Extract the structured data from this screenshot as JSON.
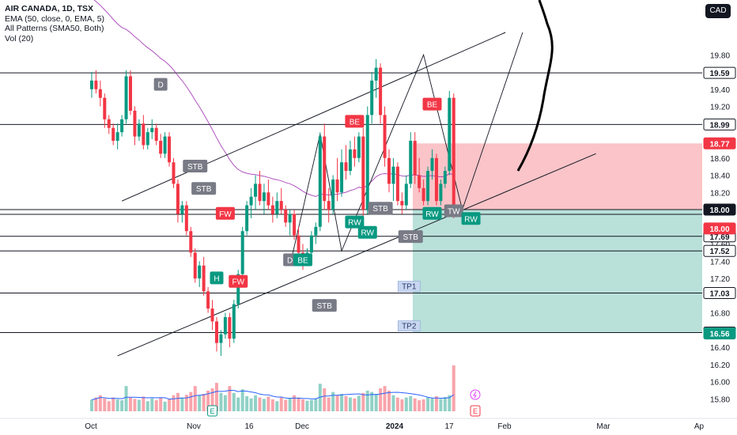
{
  "header": {
    "title": "AIR CANADA, 1D, TSX",
    "indicators": [
      "EMA (50, close, 0, EMA, 5)",
      "All Patterns (SMA50, Both)",
      "Vol (20)"
    ],
    "currency": "CAD"
  },
  "colors": {
    "up": "#089981",
    "down": "#f23645",
    "ema": "#9c27b0",
    "volume_ma": "#2962ff",
    "stop_zone": "#f7a4ab",
    "target_zone": "#9bd3c9",
    "badge_grey": "#787b86",
    "badge_green": "#089981",
    "badge_red": "#f23645"
  },
  "chart_data": {
    "type": "candlestick",
    "symbol": "AIR CANADA",
    "interval": "1D",
    "exchange": "TSX",
    "ylim": [
      15.72,
      20.06
    ],
    "x_ticks": [
      "Oct",
      "Nov",
      "16",
      "Dec",
      "2024",
      "17",
      "Feb",
      "Mar",
      "Ap"
    ],
    "y_ticks": [
      "19.80",
      "19.40",
      "19.20",
      "18.60",
      "18.40",
      "18.20",
      "17.80",
      "17.60",
      "17.40",
      "17.20",
      "16.80",
      "16.60",
      "16.40",
      "16.20",
      "16.00",
      "15.80"
    ],
    "horizontal_levels": [
      {
        "value": 19.59,
        "label": "19.59"
      },
      {
        "value": 18.99,
        "label": "18.99"
      },
      {
        "value": 18.0,
        "label": "18.00"
      },
      {
        "value": 17.69,
        "label": "17.69"
      },
      {
        "value": 17.52,
        "label": "17.52"
      },
      {
        "value": 17.03,
        "label": "17.03"
      },
      {
        "value": 16.57,
        "label": "16.57"
      }
    ],
    "price_tags": [
      {
        "value": 18.77,
        "label": "18.77",
        "type": "down"
      },
      {
        "value": 18.06,
        "label": "18.06",
        "type": "plain"
      },
      {
        "value": 18.03,
        "label": "18.03",
        "type": "plain-light"
      },
      {
        "value": 18.0,
        "label": "18.00",
        "type": "black"
      },
      {
        "value": 17.9,
        "label": "18.00",
        "type": "down"
      },
      {
        "value": 16.56,
        "label": "16.56",
        "type": "up"
      }
    ],
    "position_tool": {
      "entry": 18.0,
      "stop": 18.77,
      "target": 16.57,
      "targets": [
        {
          "label": "TP1",
          "value": 17.03
        },
        {
          "label": "TP2",
          "value": 16.57
        }
      ]
    },
    "pattern_labels": [
      {
        "text": "D",
        "day": -53,
        "price": 19.53,
        "type": "grey"
      },
      {
        "text": "STB",
        "day": -45,
        "price": 18.58,
        "type": "grey"
      },
      {
        "text": "STB",
        "day": -43,
        "price": 18.32,
        "type": "grey"
      },
      {
        "text": "FW",
        "day": -38,
        "price": 18.03,
        "type": "red"
      },
      {
        "text": "H",
        "day": -40,
        "price": 17.28,
        "type": "green"
      },
      {
        "text": "FW",
        "day": -35,
        "price": 17.24,
        "type": "red"
      },
      {
        "text": "STB",
        "day": -15,
        "price": 16.96,
        "type": "grey"
      },
      {
        "text": "D",
        "day": -23,
        "price": 17.49,
        "type": "grey"
      },
      {
        "text": "BE",
        "day": -20,
        "price": 17.49,
        "type": "green"
      },
      {
        "text": "BE",
        "day": -8,
        "price": 19.1,
        "type": "red"
      },
      {
        "text": "RW",
        "day": -8,
        "price": 17.93,
        "type": "green"
      },
      {
        "text": "RW",
        "day": -5,
        "price": 17.81,
        "type": "green"
      },
      {
        "text": "STB",
        "day": -2,
        "price": 18.09,
        "type": "grey"
      },
      {
        "text": "STB",
        "day": 5,
        "price": 17.76,
        "type": "grey"
      },
      {
        "text": "BE",
        "day": 10,
        "price": 19.3,
        "type": "red"
      },
      {
        "text": "RW",
        "day": 10,
        "price": 18.03,
        "type": "green"
      },
      {
        "text": "TW",
        "day": 15,
        "price": 18.06,
        "type": "grey"
      },
      {
        "text": "RW",
        "day": 19,
        "price": 17.97,
        "type": "green"
      }
    ],
    "annotations": [
      "TP1",
      "TP2"
    ],
    "events": [
      {
        "label": "E",
        "day": -41
      },
      {
        "label": "E",
        "day": 20
      }
    ],
    "candles": [
      [
        19.4,
        19.6,
        19.3,
        19.5
      ],
      [
        19.5,
        19.62,
        19.35,
        19.4
      ],
      [
        19.4,
        19.5,
        19.2,
        19.3
      ],
      [
        19.3,
        19.35,
        18.95,
        19.05
      ],
      [
        19.05,
        19.1,
        18.88,
        18.95
      ],
      [
        18.95,
        19.0,
        18.75,
        18.8
      ],
      [
        18.8,
        19.0,
        18.7,
        18.9
      ],
      [
        18.9,
        19.1,
        18.85,
        19.05
      ],
      [
        19.05,
        19.62,
        19.0,
        19.55
      ],
      [
        19.55,
        19.62,
        19.1,
        19.15
      ],
      [
        19.15,
        19.2,
        18.75,
        18.85
      ],
      [
        18.85,
        19.05,
        18.8,
        19.0
      ],
      [
        19.0,
        19.1,
        18.7,
        18.75
      ],
      [
        18.75,
        18.95,
        18.7,
        18.9
      ],
      [
        18.9,
        19.05,
        18.82,
        18.95
      ],
      [
        18.95,
        19.0,
        18.75,
        18.8
      ],
      [
        18.8,
        18.88,
        18.6,
        18.65
      ],
      [
        18.65,
        18.9,
        18.6,
        18.85
      ],
      [
        18.85,
        18.9,
        18.5,
        18.55
      ],
      [
        18.55,
        18.6,
        18.25,
        18.3
      ],
      [
        18.3,
        18.35,
        17.85,
        17.95
      ],
      [
        17.95,
        18.1,
        17.85,
        18.05
      ],
      [
        18.05,
        18.1,
        17.7,
        17.75
      ],
      [
        17.75,
        17.8,
        17.45,
        17.5
      ],
      [
        17.5,
        17.55,
        17.15,
        17.2
      ],
      [
        17.2,
        17.4,
        17.1,
        17.35
      ],
      [
        17.35,
        17.45,
        17.0,
        17.05
      ],
      [
        17.05,
        17.1,
        16.8,
        16.85
      ],
      [
        16.85,
        16.95,
        16.6,
        16.7
      ],
      [
        16.7,
        16.75,
        16.35,
        16.45
      ],
      [
        16.45,
        16.6,
        16.3,
        16.55
      ],
      [
        16.55,
        16.8,
        16.5,
        16.75
      ],
      [
        16.75,
        16.8,
        16.4,
        16.5
      ],
      [
        16.5,
        16.95,
        16.45,
        16.9
      ],
      [
        16.9,
        17.3,
        16.85,
        17.25
      ],
      [
        17.25,
        17.8,
        17.2,
        17.75
      ],
      [
        17.75,
        18.1,
        17.7,
        18.05
      ],
      [
        18.05,
        18.25,
        17.9,
        18.15
      ],
      [
        18.15,
        18.4,
        18.0,
        18.3
      ],
      [
        18.3,
        18.45,
        18.05,
        18.1
      ],
      [
        18.1,
        18.3,
        17.95,
        18.2
      ],
      [
        18.2,
        18.35,
        18.0,
        18.05
      ],
      [
        18.05,
        18.15,
        17.85,
        17.95
      ],
      [
        17.95,
        18.2,
        17.9,
        18.1
      ],
      [
        18.1,
        18.25,
        17.95,
        18.0
      ],
      [
        18.0,
        18.05,
        17.8,
        17.85
      ],
      [
        17.85,
        18.0,
        17.7,
        17.95
      ],
      [
        17.95,
        18.0,
        17.65,
        17.7
      ],
      [
        17.7,
        17.8,
        17.45,
        17.5
      ],
      [
        17.5,
        17.6,
        17.3,
        17.4
      ],
      [
        17.4,
        17.55,
        17.35,
        17.5
      ],
      [
        17.5,
        17.75,
        17.45,
        17.7
      ],
      [
        17.7,
        17.85,
        17.6,
        17.8
      ],
      [
        17.8,
        18.9,
        17.75,
        18.85
      ],
      [
        18.85,
        19.0,
        18.0,
        18.1
      ],
      [
        18.1,
        18.25,
        17.85,
        18.0
      ],
      [
        18.0,
        18.4,
        17.95,
        18.35
      ],
      [
        18.35,
        18.6,
        18.1,
        18.2
      ],
      [
        18.2,
        18.7,
        18.15,
        18.55
      ],
      [
        18.55,
        18.75,
        18.35,
        18.45
      ],
      [
        18.45,
        18.8,
        18.4,
        18.7
      ],
      [
        18.7,
        18.85,
        18.5,
        18.6
      ],
      [
        18.6,
        18.9,
        18.55,
        18.85
      ],
      [
        18.85,
        18.95,
        17.9,
        18.0
      ],
      [
        18.0,
        19.2,
        17.95,
        19.1
      ],
      [
        19.1,
        19.6,
        19.0,
        19.5
      ],
      [
        19.5,
        19.75,
        19.3,
        19.65
      ],
      [
        19.65,
        19.7,
        19.0,
        19.1
      ],
      [
        19.1,
        19.2,
        18.5,
        18.6
      ],
      [
        18.6,
        18.7,
        18.2,
        18.3
      ],
      [
        18.3,
        18.6,
        18.1,
        18.5
      ],
      [
        18.5,
        18.55,
        18.05,
        18.1
      ],
      [
        18.1,
        18.2,
        17.95,
        18.05
      ],
      [
        18.05,
        18.4,
        18.0,
        18.3
      ],
      [
        18.3,
        18.9,
        18.25,
        18.8
      ],
      [
        18.8,
        18.9,
        18.3,
        18.4
      ],
      [
        18.4,
        18.6,
        18.2,
        18.25
      ],
      [
        18.25,
        18.35,
        18.05,
        18.1
      ],
      [
        18.1,
        18.5,
        18.05,
        18.45
      ],
      [
        18.45,
        18.7,
        18.35,
        18.6
      ],
      [
        18.6,
        18.65,
        18.05,
        18.1
      ],
      [
        18.1,
        18.35,
        18.05,
        18.3
      ],
      [
        18.3,
        18.5,
        18.25,
        18.45
      ],
      [
        18.45,
        19.38,
        18.4,
        19.3
      ],
      [
        19.3,
        19.35,
        17.9,
        18.0
      ]
    ],
    "volumes": [
      0.25,
      0.3,
      0.35,
      0.28,
      0.22,
      0.3,
      0.26,
      0.24,
      0.55,
      0.3,
      0.27,
      0.25,
      0.32,
      0.22,
      0.28,
      0.24,
      0.3,
      0.21,
      0.26,
      0.35,
      0.4,
      0.3,
      0.36,
      0.42,
      0.55,
      0.35,
      0.38,
      0.45,
      0.5,
      0.62,
      0.4,
      0.35,
      0.55,
      0.4,
      0.3,
      0.48,
      0.33,
      0.28,
      0.35,
      0.3,
      0.27,
      0.32,
      0.26,
      0.22,
      0.3,
      0.25,
      0.28,
      0.35,
      0.3,
      0.26,
      0.23,
      0.25,
      0.28,
      0.6,
      0.5,
      0.3,
      0.42,
      0.35,
      0.38,
      0.33,
      0.3,
      0.28,
      0.34,
      0.4,
      0.45,
      0.42,
      0.38,
      0.5,
      0.55,
      0.45,
      0.35,
      0.3,
      0.26,
      0.3,
      0.33,
      0.28,
      0.24,
      0.26,
      0.3,
      0.28,
      0.33,
      0.27,
      0.31,
      0.35,
      1.0
    ]
  }
}
